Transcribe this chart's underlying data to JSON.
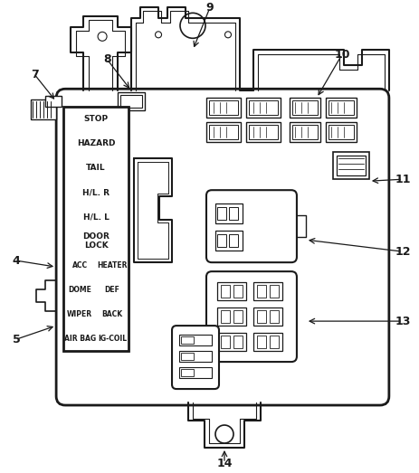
{
  "bg_color": "#ffffff",
  "line_color": "#1a1a1a",
  "fuse_labels_left": [
    "STOP",
    "HAZARD",
    "TAIL",
    "H/L. R",
    "H/L. L",
    "DOOR\nLOCK",
    "ACC",
    "DOME",
    "WIPER",
    "AIR BAG"
  ],
  "fuse_labels_right": [
    "",
    "",
    "",
    "",
    "",
    "",
    "HEATER",
    "DEF",
    "BACK",
    "IG-COIL"
  ],
  "callout_left": [
    [
      "4",
      18,
      310
    ],
    [
      "5",
      18,
      225
    ]
  ],
  "callout_top": [
    [
      "7",
      38,
      82
    ],
    [
      "8",
      118,
      88
    ],
    [
      "9",
      232,
      10
    ],
    [
      "10",
      375,
      62
    ]
  ],
  "callout_right": [
    [
      "11",
      448,
      198
    ],
    [
      "12",
      448,
      278
    ],
    [
      "13",
      448,
      350
    ]
  ],
  "callout_bottom": [
    [
      "14",
      248,
      512
    ]
  ]
}
